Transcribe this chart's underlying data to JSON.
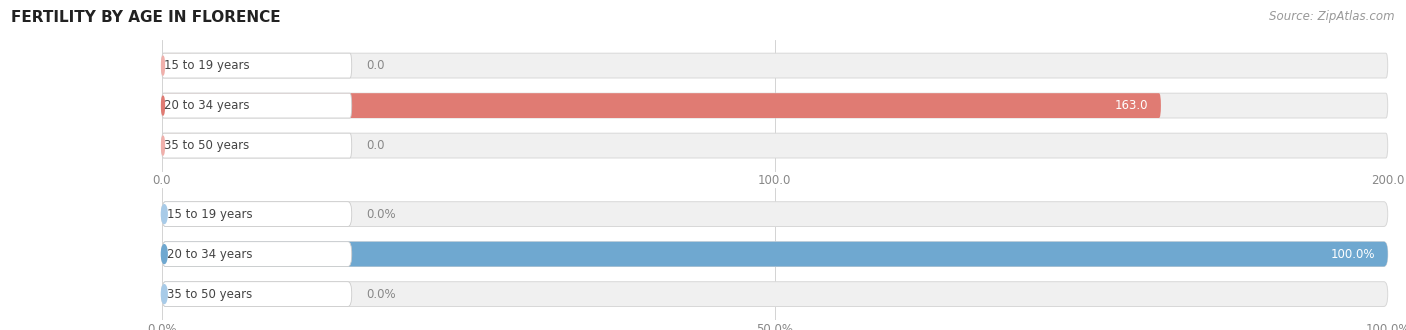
{
  "title": "FERTILITY BY AGE IN FLORENCE",
  "source": "Source: ZipAtlas.com",
  "top_chart": {
    "categories": [
      "15 to 19 years",
      "20 to 34 years",
      "35 to 50 years"
    ],
    "values": [
      0.0,
      163.0,
      0.0
    ],
    "xlim": [
      0,
      200
    ],
    "xticks": [
      0.0,
      100.0,
      200.0
    ],
    "xtick_labels": [
      "0.0",
      "100.0",
      "200.0"
    ],
    "bar_color": "#E07B73",
    "bar_color_light": "#F0B0AB",
    "bar_bg_color": "#F0F0F0",
    "bar_border_color": "#DDDDDD"
  },
  "bottom_chart": {
    "categories": [
      "15 to 19 years",
      "20 to 34 years",
      "35 to 50 years"
    ],
    "values": [
      0.0,
      100.0,
      0.0
    ],
    "xlim": [
      0,
      100
    ],
    "xticks": [
      0.0,
      50.0,
      100.0
    ],
    "xtick_labels": [
      "0.0%",
      "50.0%",
      "100.0%"
    ],
    "bar_color": "#6FA8D0",
    "bar_color_light": "#A8CBE8",
    "bar_bg_color": "#F0F0F0",
    "bar_border_color": "#DDDDDD"
  },
  "title_fontsize": 11,
  "source_fontsize": 8.5,
  "label_fontsize": 8.5,
  "tick_fontsize": 8.5,
  "category_fontsize": 8.5,
  "bar_height": 0.62,
  "bg_color": "#FFFFFF",
  "grid_color": "#CCCCCC",
  "category_text_color": "#444444",
  "title_color": "#222222",
  "value_label_color": "#888888"
}
